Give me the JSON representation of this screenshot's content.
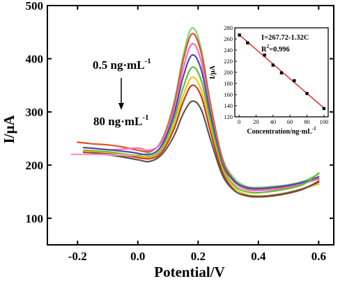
{
  "chart_data": [
    {
      "type": "line",
      "xlabel": "Potential/V",
      "ylabel": "I/μA",
      "xlim": [
        -0.3,
        0.65
      ],
      "ylim": [
        50,
        500
      ],
      "x_ticks": [
        -0.2,
        0.0,
        0.2,
        0.4,
        0.6
      ],
      "x_tick_labels": [
        "-0.2",
        "0.0",
        "0.2",
        "0.4",
        "0.6"
      ],
      "y_ticks": [
        100,
        200,
        300,
        400,
        500
      ],
      "y_tick_labels": [
        "100",
        "200",
        "300",
        "400",
        "500"
      ],
      "annotations": {
        "top_label": "0.5 ng·mL",
        "top_label_sup": "-1",
        "bottom_label": "80 ng·mL",
        "bottom_label_sup": "-1"
      },
      "series": [
        {
          "color": "#7ed67e",
          "values": [
            [
              -0.1,
              221
            ],
            [
              -0.02,
              218
            ],
            [
              0.04,
              224
            ],
            [
              0.08,
              248
            ],
            [
              0.12,
              318
            ],
            [
              0.15,
              405
            ],
            [
              0.18,
              458
            ],
            [
              0.21,
              420
            ],
            [
              0.24,
              320
            ],
            [
              0.28,
              215
            ],
            [
              0.32,
              175
            ],
            [
              0.36,
              160
            ],
            [
              0.4,
              158
            ],
            [
              0.45,
              160
            ],
            [
              0.5,
              163
            ],
            [
              0.55,
              170
            ],
            [
              0.6,
              183
            ]
          ]
        },
        {
          "color": "#e0521c",
          "values": [
            [
              -0.2,
              243
            ],
            [
              -0.15,
              240
            ],
            [
              -0.1,
              238
            ],
            [
              -0.05,
              234
            ],
            [
              0.0,
              228
            ],
            [
              0.04,
              226
            ],
            [
              0.08,
              246
            ],
            [
              0.12,
              313
            ],
            [
              0.15,
              396
            ],
            [
              0.18,
              447
            ],
            [
              0.21,
              412
            ],
            [
              0.24,
              316
            ],
            [
              0.28,
              212
            ],
            [
              0.32,
              171
            ],
            [
              0.36,
              157
            ],
            [
              0.4,
              155
            ],
            [
              0.45,
              157
            ],
            [
              0.5,
              160
            ],
            [
              0.55,
              166
            ],
            [
              0.6,
              174
            ]
          ]
        },
        {
          "color": "#ee6fcf",
          "values": [
            [
              -0.15,
              232
            ],
            [
              -0.1,
              229
            ],
            [
              -0.05,
              230
            ],
            [
              0.0,
              232
            ],
            [
              0.04,
              228
            ],
            [
              0.08,
              244
            ],
            [
              0.12,
              305
            ],
            [
              0.15,
              380
            ],
            [
              0.18,
              428
            ],
            [
              0.21,
              396
            ],
            [
              0.24,
              305
            ],
            [
              0.28,
              207
            ],
            [
              0.32,
              168
            ],
            [
              0.36,
              154
            ],
            [
              0.4,
              152
            ],
            [
              0.45,
              154
            ],
            [
              0.5,
              158
            ],
            [
              0.55,
              165
            ],
            [
              0.6,
              176
            ]
          ]
        },
        {
          "color": "#4a4aad",
          "values": [
            [
              -0.18,
              233
            ],
            [
              -0.1,
              229
            ],
            [
              -0.02,
              224
            ],
            [
              0.04,
              220
            ],
            [
              0.08,
              238
            ],
            [
              0.12,
              295
            ],
            [
              0.15,
              365
            ],
            [
              0.18,
              407
            ],
            [
              0.21,
              380
            ],
            [
              0.24,
              298
            ],
            [
              0.28,
              204
            ],
            [
              0.32,
              170
            ],
            [
              0.36,
              158
            ],
            [
              0.4,
              156
            ],
            [
              0.45,
              158
            ],
            [
              0.5,
              162
            ],
            [
              0.55,
              168
            ],
            [
              0.6,
              178
            ]
          ]
        },
        {
          "color": "#66bb33",
          "values": [
            [
              -0.18,
              228
            ],
            [
              -0.1,
              225
            ],
            [
              -0.02,
              219
            ],
            [
              0.04,
              216
            ],
            [
              0.08,
              232
            ],
            [
              0.12,
              285
            ],
            [
              0.15,
              345
            ],
            [
              0.18,
              384
            ],
            [
              0.21,
              360
            ],
            [
              0.24,
              285
            ],
            [
              0.28,
              198
            ],
            [
              0.32,
              162
            ],
            [
              0.36,
              150
            ],
            [
              0.4,
              148
            ],
            [
              0.45,
              151
            ],
            [
              0.5,
              156
            ],
            [
              0.55,
              164
            ],
            [
              0.6,
              185
            ]
          ]
        },
        {
          "color": "#f2c618",
          "values": [
            [
              -0.18,
              226
            ],
            [
              -0.1,
              222
            ],
            [
              -0.02,
              218
            ],
            [
              0.04,
              214
            ],
            [
              0.08,
              228
            ],
            [
              0.12,
              275
            ],
            [
              0.15,
              330
            ],
            [
              0.18,
              365
            ],
            [
              0.21,
              342
            ],
            [
              0.24,
              272
            ],
            [
              0.28,
              192
            ],
            [
              0.32,
              158
            ],
            [
              0.36,
              145
            ],
            [
              0.4,
              142
            ],
            [
              0.45,
              144
            ],
            [
              0.5,
              149
            ],
            [
              0.55,
              156
            ],
            [
              0.6,
              164
            ]
          ]
        },
        {
          "color": "#cc3a1a",
          "values": [
            [
              -0.18,
              224
            ],
            [
              -0.1,
              221
            ],
            [
              -0.02,
              216
            ],
            [
              0.04,
              212
            ],
            [
              0.08,
              225
            ],
            [
              0.12,
              268
            ],
            [
              0.15,
              318
            ],
            [
              0.18,
              350
            ],
            [
              0.21,
              330
            ],
            [
              0.24,
              265
            ],
            [
              0.28,
              188
            ],
            [
              0.32,
              153
            ],
            [
              0.36,
              142
            ],
            [
              0.4,
              140
            ],
            [
              0.45,
              142
            ],
            [
              0.5,
              147
            ],
            [
              0.55,
              155
            ],
            [
              0.6,
              170
            ]
          ]
        },
        {
          "color": "#555555",
          "values": [
            [
              -0.15,
              222
            ],
            [
              -0.08,
              218
            ],
            [
              0.0,
              210
            ],
            [
              0.04,
              207
            ],
            [
              0.08,
              220
            ],
            [
              0.12,
              255
            ],
            [
              0.15,
              296
            ],
            [
              0.18,
              320
            ],
            [
              0.21,
              305
            ],
            [
              0.24,
              250
            ],
            [
              0.28,
              182
            ],
            [
              0.32,
              152
            ],
            [
              0.36,
              143
            ],
            [
              0.4,
              141
            ],
            [
              0.45,
              143
            ],
            [
              0.5,
              148
            ],
            [
              0.55,
              156
            ],
            [
              0.6,
              168
            ]
          ]
        },
        {
          "color": "#f09bd8",
          "values": [
            [
              -0.22,
              220
            ],
            [
              -0.15,
              220
            ],
            [
              -0.08,
              219
            ],
            [
              -0.02,
              218
            ]
          ]
        }
      ]
    },
    {
      "type": "scatter",
      "xlabel": "Concentration/ng·mL",
      "xlabel_sup": "-1",
      "ylabel": "I/μA",
      "xlim": [
        -5,
        105
      ],
      "ylim": [
        120,
        280
      ],
      "x_ticks": [
        0,
        20,
        40,
        60,
        80,
        100
      ],
      "x_tick_labels": [
        "0",
        "20",
        "40",
        "60",
        "80",
        "100"
      ],
      "y_ticks": [
        120,
        140,
        160,
        180,
        200,
        220,
        240,
        260,
        280
      ],
      "y_tick_labels": [
        "120",
        "140",
        "160",
        "180",
        "200",
        "220",
        "240",
        "260",
        "280"
      ],
      "equation": "I=267.72-1.32C",
      "r2_label": "R",
      "r2_sup": "2",
      "r2_value": "=0.996",
      "points": [
        [
          0.5,
          267
        ],
        [
          10,
          253
        ],
        [
          30,
          231
        ],
        [
          40,
          213
        ],
        [
          50,
          199
        ],
        [
          65,
          185
        ],
        [
          80,
          162
        ],
        [
          100,
          135
        ]
      ],
      "fit": {
        "intercept": 267.72,
        "slope": -1.32,
        "x_range": [
          0,
          100
        ],
        "color": "#e01010"
      }
    }
  ]
}
